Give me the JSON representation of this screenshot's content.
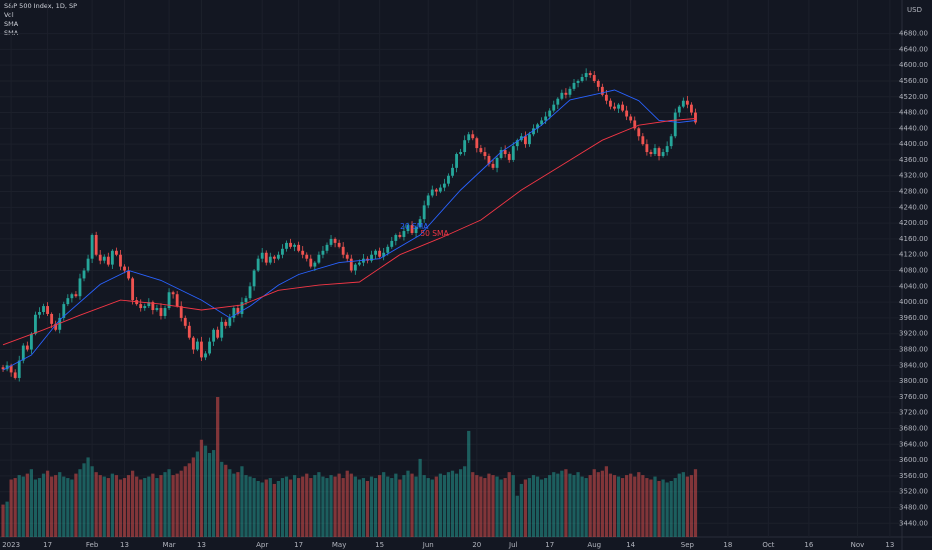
{
  "chart_data": {
    "type": "candlestick",
    "title": "S&P 500 Index, 1D, SP",
    "indicators": [
      "Vol",
      "SMA",
      "SMA"
    ],
    "currency": "USD",
    "up_color": "#26a69a",
    "down_color": "#ef5350",
    "grid": true,
    "xlim": [
      -0.75,
      222
    ],
    "ylim": [
      3423,
      4765
    ],
    "xticks": [
      {
        "value": 2,
        "label": "2023"
      },
      {
        "value": 11,
        "label": "17"
      },
      {
        "value": 22,
        "label": "Feb"
      },
      {
        "value": 30,
        "label": "13"
      },
      {
        "value": 41,
        "label": "Mar"
      },
      {
        "value": 49,
        "label": "13"
      },
      {
        "value": 64,
        "label": "Apr"
      },
      {
        "value": 73,
        "label": "17"
      },
      {
        "value": 83,
        "label": "May"
      },
      {
        "value": 93,
        "label": "15"
      },
      {
        "value": 105,
        "label": "Jun"
      },
      {
        "value": 117,
        "label": "20"
      },
      {
        "value": 126,
        "label": "Jul"
      },
      {
        "value": 135,
        "label": "17"
      },
      {
        "value": 146,
        "label": "Aug"
      },
      {
        "value": 155,
        "label": "14"
      },
      {
        "value": 169,
        "label": "Sep"
      },
      {
        "value": 179,
        "label": "18"
      },
      {
        "value": 189,
        "label": "Oct"
      },
      {
        "value": 199,
        "label": "16"
      },
      {
        "value": 211,
        "label": "Nov"
      },
      {
        "value": 219,
        "label": "13"
      }
    ],
    "yticks": [
      {
        "value": 3440,
        "label": "3440.00"
      },
      {
        "value": 3480,
        "label": "3480.00"
      },
      {
        "value": 3520,
        "label": "3520.00"
      },
      {
        "value": 3560,
        "label": "3560.00"
      },
      {
        "value": 3600,
        "label": "3600.00"
      },
      {
        "value": 3640,
        "label": "3640.00"
      },
      {
        "value": 3680,
        "label": "3680.00"
      },
      {
        "value": 3720,
        "label": "3720.00"
      },
      {
        "value": 3760,
        "label": "3760.00"
      },
      {
        "value": 3800,
        "label": "3800.00"
      },
      {
        "value": 3840,
        "label": "3840.00"
      },
      {
        "value": 3880,
        "label": "3880.00"
      },
      {
        "value": 3920,
        "label": "3920.00"
      },
      {
        "value": 3960,
        "label": "3960.00"
      },
      {
        "value": 4000,
        "label": "4000.00"
      },
      {
        "value": 4040,
        "label": "4040.00"
      },
      {
        "value": 4080,
        "label": "4080.00"
      },
      {
        "value": 4120,
        "label": "4120.00"
      },
      {
        "value": 4160,
        "label": "4160.00"
      },
      {
        "value": 4200,
        "label": "4200.00"
      },
      {
        "value": 4240,
        "label": "4240.00"
      },
      {
        "value": 4280,
        "label": "4280.00"
      },
      {
        "value": 4320,
        "label": "4320.00"
      },
      {
        "value": 4360,
        "label": "4360.00"
      },
      {
        "value": 4400,
        "label": "4400.00"
      },
      {
        "value": 4440,
        "label": "4440.00"
      },
      {
        "value": 4480,
        "label": "4480.00"
      },
      {
        "value": 4520,
        "label": "4520.00"
      },
      {
        "value": 4560,
        "label": "4560.00"
      },
      {
        "value": 4600,
        "label": "4600.00"
      },
      {
        "value": 4640,
        "label": "4640.00"
      },
      {
        "value": 4680,
        "label": "4680.00"
      }
    ],
    "open": [
      3835,
      3830,
      3840,
      3822,
      3808,
      3852,
      3890,
      3880,
      3920,
      3968,
      3975,
      3990,
      3970,
      3945,
      3930,
      3960,
      3995,
      4010,
      4020,
      4015,
      4060,
      4080,
      4110,
      4170,
      4120,
      4105,
      4115,
      4095,
      4130,
      4120,
      4090,
      4080,
      4060,
      4005,
      3995,
      3985,
      3990,
      4000,
      3980,
      3985,
      3965,
      3985,
      4025,
      4020,
      3990,
      3960,
      3940,
      3910,
      3880,
      3900,
      3860,
      3870,
      3900,
      3930,
      3910,
      3950,
      3940,
      3960,
      3985,
      3970,
      4000,
      4010,
      4040,
      4080,
      4110,
      4125,
      4100,
      4115,
      4110,
      4120,
      4135,
      4150,
      4140,
      4145,
      4130,
      4120,
      4110,
      4090,
      4100,
      4120,
      4130,
      4145,
      4160,
      4150,
      4140,
      4120,
      4110,
      4080,
      4095,
      4100,
      4110,
      4105,
      4120,
      4130,
      4115,
      4125,
      4140,
      4155,
      4170,
      4165,
      4180,
      4195,
      4175,
      4190,
      4210,
      4245,
      4270,
      4285,
      4280,
      4290,
      4300,
      4320,
      4340,
      4375,
      4380,
      4410,
      4425,
      4415,
      4390,
      4380,
      4370,
      4350,
      4340,
      4365,
      4385,
      4375,
      4360,
      4395,
      4410,
      4420,
      4400,
      4425,
      4440,
      4450,
      4460,
      4470,
      4485,
      4500,
      4515,
      4530,
      4525,
      4540,
      4555,
      4560,
      4570,
      4580,
      4575,
      4560,
      4545,
      4525,
      4510,
      4495,
      4490,
      4500,
      4485,
      4470,
      4460,
      4440,
      4420,
      4400,
      4380,
      4375,
      4390,
      4370,
      4380,
      4395,
      4420,
      4480,
      4495,
      4510,
      4500,
      4480
    ],
    "high": [
      3841,
      3850,
      3844,
      3830,
      3864,
      3896,
      3900,
      3924,
      3976,
      3987,
      3996,
      4000,
      3974,
      3953,
      3972,
      4001,
      4020,
      4024,
      4028,
      4072,
      4086,
      4120,
      4174,
      4178,
      4132,
      4121,
      4125,
      4134,
      4138,
      4132,
      4096,
      4090,
      4064,
      4013,
      4007,
      3996,
      4010,
      4004,
      3993,
      3997,
      3991,
      4035,
      4029,
      4028,
      4002,
      3966,
      3950,
      3914,
      3908,
      3912,
      3876,
      3910,
      3934,
      3938,
      3962,
      3956,
      3970,
      3989,
      3993,
      4012,
      4016,
      4050,
      4084,
      4118,
      4137,
      4131,
      4125,
      4119,
      4128,
      4147,
      4156,
      4160,
      4149,
      4153,
      4142,
      4126,
      4120,
      4104,
      4128,
      4142,
      4151,
      4170,
      4164,
      4158,
      4152,
      4126,
      4120,
      4099,
      4108,
      4122,
      4116,
      4130,
      4134,
      4138,
      4137,
      4146,
      4165,
      4174,
      4178,
      4192,
      4201,
      4205,
      4194,
      4218,
      4257,
      4276,
      4295,
      4289,
      4298,
      4312,
      4326,
      4350,
      4379,
      4388,
      4422,
      4431,
      4435,
      4419,
      4398,
      4392,
      4376,
      4360,
      4369,
      4393,
      4397,
      4381,
      4405,
      4414,
      4428,
      4432,
      4431,
      4450,
      4454,
      4468,
      4482,
      4491,
      4510,
      4519,
      4538,
      4542,
      4546,
      4565,
      4564,
      4578,
      4592,
      4586,
      4585,
      4564,
      4553,
      4537,
      4516,
      4505,
      4504,
      4508,
      4497,
      4476,
      4470,
      4444,
      4428,
      4412,
      4386,
      4400,
      4394,
      4388,
      4407,
      4426,
      4490,
      4499,
      4518,
      4522,
      4506,
      4490
    ],
    "low": [
      3823,
      3825,
      3811,
      3804,
      3799,
      3845,
      3875,
      3869,
      3916,
      3959,
      3968,
      3965,
      3934,
      3926,
      3921,
      3953,
      3990,
      3999,
      4011,
      4006,
      4053,
      4075,
      4099,
      4116,
      4096,
      4098,
      4090,
      4084,
      4116,
      4081,
      4073,
      4055,
      3994,
      3991,
      3976,
      3978,
      3985,
      3969,
      3976,
      3956,
      3958,
      3980,
      4009,
      3986,
      3951,
      3933,
      3905,
      3869,
      3876,
      3851,
      3853,
      3865,
      3889,
      3906,
      3901,
      3933,
      3935,
      3949,
      3966,
      3961,
      3993,
      4005,
      4029,
      4076,
      4101,
      4093,
      4095,
      4099,
      4106,
      4111,
      4128,
      4135,
      4129,
      4126,
      4111,
      4103,
      4085,
      4079,
      4096,
      4111,
      4123,
      4140,
      4139,
      4136,
      4111,
      4103,
      4075,
      4069,
      4091,
      4091,
      4098,
      4100,
      4109,
      4111,
      4106,
      4118,
      4135,
      4144,
      4161,
      4156,
      4173,
      4170,
      4164,
      4186,
      4201,
      4238,
      4265,
      4269,
      4276,
      4281,
      4293,
      4315,
      4329,
      4371,
      4371,
      4403,
      4410,
      4379,
      4376,
      4361,
      4343,
      4335,
      4329,
      4361,
      4366,
      4353,
      4355,
      4384,
      4406,
      4391,
      4393,
      4420,
      4429,
      4446,
      4451,
      4463,
      4480,
      4489,
      4511,
      4516,
      4518,
      4535,
      4544,
      4556,
      4561,
      4568,
      4555,
      4534,
      4521,
      4501,
      4488,
      4485,
      4479,
      4481,
      4461,
      4453,
      4435,
      4409,
      4396,
      4371,
      4368,
      4370,
      4359,
      4366,
      4371,
      4388,
      4415,
      4469,
      4491,
      4491,
      4473,
      4450
    ],
    "close": [
      3830,
      3840,
      3822,
      3808,
      3852,
      3890,
      3880,
      3920,
      3968,
      3975,
      3990,
      3970,
      3945,
      3930,
      3960,
      3995,
      4010,
      4020,
      4015,
      4060,
      4080,
      4110,
      4170,
      4120,
      4105,
      4115,
      4095,
      4130,
      4120,
      4090,
      4080,
      4060,
      4005,
      3995,
      3985,
      3990,
      4000,
      3980,
      3985,
      3965,
      3985,
      4025,
      4020,
      3990,
      3960,
      3940,
      3910,
      3880,
      3900,
      3860,
      3870,
      3900,
      3930,
      3910,
      3950,
      3940,
      3960,
      3985,
      3970,
      4000,
      4010,
      4040,
      4080,
      4110,
      4125,
      4100,
      4115,
      4110,
      4120,
      4135,
      4150,
      4140,
      4145,
      4130,
      4120,
      4110,
      4090,
      4100,
      4120,
      4130,
      4145,
      4160,
      4150,
      4140,
      4120,
      4110,
      4080,
      4095,
      4100,
      4110,
      4105,
      4120,
      4130,
      4115,
      4125,
      4140,
      4155,
      4170,
      4165,
      4180,
      4195,
      4175,
      4190,
      4210,
      4245,
      4270,
      4285,
      4280,
      4290,
      4300,
      4320,
      4340,
      4375,
      4380,
      4410,
      4425,
      4415,
      4390,
      4380,
      4370,
      4350,
      4340,
      4365,
      4385,
      4375,
      4360,
      4395,
      4410,
      4420,
      4400,
      4425,
      4440,
      4450,
      4460,
      4470,
      4485,
      4500,
      4515,
      4530,
      4525,
      4540,
      4555,
      4560,
      4570,
      4580,
      4575,
      4560,
      4545,
      4525,
      4510,
      4495,
      4490,
      4500,
      4485,
      4470,
      4460,
      4440,
      4420,
      4400,
      4380,
      4375,
      4390,
      4370,
      4380,
      4395,
      4420,
      4480,
      4495,
      4510,
      4500,
      4480,
      4455
    ],
    "volume": [
      2.2,
      2.4,
      3.9,
      4.0,
      4.2,
      4.1,
      4.3,
      4.6,
      3.9,
      4.0,
      4.3,
      4.5,
      4.1,
      4.2,
      4.4,
      4.1,
      4.0,
      3.9,
      4.3,
      4.6,
      5.0,
      5.4,
      4.8,
      4.4,
      4.2,
      4.1,
      4.0,
      4.3,
      4.2,
      3.9,
      4.0,
      4.2,
      4.5,
      4.1,
      3.9,
      4.0,
      4.1,
      4.3,
      4.0,
      4.2,
      4.4,
      4.6,
      4.2,
      4.3,
      4.5,
      4.8,
      5.0,
      5.4,
      5.8,
      6.6,
      6.2,
      5.7,
      5.9,
      9.5,
      5.1,
      4.9,
      4.6,
      4.3,
      4.4,
      4.8,
      4.2,
      4.1,
      4.0,
      3.8,
      3.7,
      3.9,
      4.0,
      3.6,
      3.8,
      4.0,
      4.1,
      3.9,
      4.2,
      4.0,
      4.1,
      4.3,
      4.0,
      4.2,
      4.4,
      4.1,
      4.0,
      4.2,
      4.1,
      4.3,
      4.0,
      4.5,
      4.3,
      4.1,
      3.9,
      4.0,
      3.8,
      4.1,
      4.0,
      4.2,
      4.4,
      4.1,
      4.0,
      4.3,
      3.9,
      4.2,
      4.5,
      4.3,
      4.1,
      5.3,
      4.2,
      4.0,
      3.9,
      4.1,
      4.3,
      4.2,
      4.4,
      4.5,
      4.3,
      4.6,
      4.8,
      7.2,
      4.4,
      4.2,
      4.1,
      4.0,
      4.3,
      4.2,
      4.1,
      3.9,
      4.0,
      4.4,
      4.2,
      2.8,
      3.6,
      3.9,
      4.0,
      4.2,
      4.1,
      3.9,
      4.0,
      4.2,
      4.4,
      4.3,
      4.5,
      4.6,
      4.3,
      4.2,
      4.4,
      4.1,
      4.0,
      4.2,
      4.6,
      4.4,
      4.5,
      4.8,
      4.3,
      4.2,
      4.1,
      4.0,
      4.2,
      4.3,
      4.1,
      4.4,
      4.2,
      4.0,
      3.9,
      4.1,
      3.8,
      3.9,
      3.7,
      3.8,
      4.0,
      4.3,
      4.4,
      4.1,
      4.2,
      4.6
    ],
    "overlays": [
      {
        "name": "20 SMA",
        "color": "#2962ff",
        "x": [
          0,
          7,
          14,
          24,
          31,
          39,
          49,
          56,
          61,
          68,
          73,
          83,
          93,
          103,
          113,
          123,
          133,
          140,
          148,
          151,
          157,
          162,
          167,
          171
        ],
        "values": [
          3828,
          3866,
          3955,
          4045,
          4080,
          4055,
          4005,
          3960,
          3990,
          4043,
          4070,
          4100,
          4110,
          4170,
          4284,
          4380,
          4448,
          4512,
          4530,
          4537,
          4510,
          4460,
          4455,
          4460
        ]
      },
      {
        "name": "50 SMA",
        "color": "#f23645",
        "x": [
          0,
          10,
          19,
          29,
          39,
          49,
          59,
          68,
          78,
          88,
          98,
          108,
          118,
          128,
          138,
          148,
          157,
          165,
          171
        ],
        "values": [
          3892,
          3930,
          3967,
          4005,
          3995,
          3980,
          3993,
          4030,
          4043,
          4051,
          4120,
          4162,
          4208,
          4284,
          4347,
          4410,
          4448,
          4460,
          4465
        ]
      }
    ]
  }
}
